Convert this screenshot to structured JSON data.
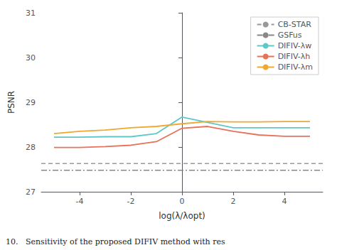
{
  "chart_data": {
    "type": "line",
    "xlabel": "log(λ/λopt)",
    "ylabel": "PSNR",
    "annotations": [
      "10.   Sensitivity of the proposed DIFIV method with res"
    ],
    "x": [
      -5,
      -4,
      -3,
      -2,
      -1,
      0,
      1,
      2,
      3,
      4,
      5
    ],
    "series": [
      {
        "name": "CB-STAR",
        "type": "hline",
        "value": 27.63,
        "color": "#999999",
        "line_style": "dashed"
      },
      {
        "name": "GSFus",
        "type": "hline",
        "value": 27.48,
        "color": "#888888",
        "line_style": "dashdot"
      },
      {
        "name": "DIFIV-λw",
        "type": "line",
        "color": "#5ec8c8",
        "line_style": "solid",
        "values": [
          28.22,
          28.22,
          28.23,
          28.23,
          28.3,
          28.67,
          28.55,
          28.43,
          28.43,
          28.43,
          28.43
        ]
      },
      {
        "name": "DIFIV-λh",
        "type": "line",
        "color": "#e8715a",
        "line_style": "solid",
        "values": [
          27.99,
          27.99,
          28.01,
          28.04,
          28.12,
          28.42,
          28.46,
          28.35,
          28.27,
          28.24,
          28.24
        ]
      },
      {
        "name": "DIFIV-λm",
        "type": "line",
        "color": "#f0a830",
        "line_style": "solid",
        "values": [
          28.3,
          28.35,
          28.38,
          28.43,
          28.46,
          28.52,
          28.57,
          28.56,
          28.56,
          28.57,
          28.57
        ]
      }
    ],
    "xlim": [
      -5.5,
      5.5
    ],
    "xticks": [
      -4,
      -2,
      0,
      2,
      4
    ],
    "ylim": [
      27.0,
      31.0
    ],
    "yticks": [
      27,
      28,
      29,
      30,
      31
    ],
    "grid": false,
    "legend": "upper right"
  }
}
